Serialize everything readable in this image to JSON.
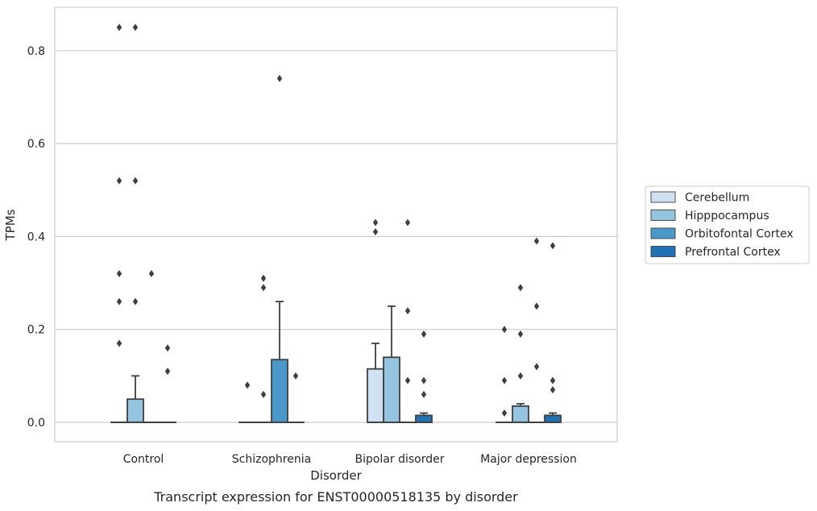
{
  "caption": "Transcript expression for ENST00000518135 by disorder",
  "chart_data": {
    "type": "box",
    "title": "",
    "xlabel": "Disorder",
    "ylabel": "TPMs",
    "ylim": [
      -0.04,
      0.9
    ],
    "yticks": [
      0.0,
      0.2,
      0.4,
      0.6,
      0.8
    ],
    "ytick_labels": [
      "0.0",
      "0.2",
      "0.4",
      "0.6",
      "0.8"
    ],
    "grid": "horizontal",
    "legend_position": "right",
    "categories": [
      "Control",
      "Schizophrenia",
      "Bipolar disorder",
      "Major depression"
    ],
    "series": [
      {
        "name": "Cerebellum",
        "color": "#d0e1f2",
        "boxes": [
          {
            "q1": 0,
            "median": 0,
            "q3": 0,
            "whisker_low": 0,
            "whisker_high": 0,
            "outliers": [
              0.17,
              0.26,
              0.32,
              0.52,
              0.85
            ]
          },
          {
            "q1": 0,
            "median": 0,
            "q3": 0,
            "whisker_low": 0,
            "whisker_high": 0,
            "outliers": [
              0.08
            ]
          },
          {
            "q1": 0,
            "median": 0,
            "q3": 0.115,
            "whisker_low": 0,
            "whisker_high": 0.17,
            "outliers": [
              0.41,
              0.43
            ]
          },
          {
            "q1": 0,
            "median": 0,
            "q3": 0,
            "whisker_low": 0,
            "whisker_high": 0,
            "outliers": [
              0.02,
              0.09,
              0.2
            ]
          }
        ]
      },
      {
        "name": "Hipppocampus",
        "color": "#94c4df",
        "boxes": [
          {
            "q1": 0,
            "median": 0,
            "q3": 0.05,
            "whisker_low": 0,
            "whisker_high": 0.1,
            "outliers": [
              0.26,
              0.52,
              0.85
            ]
          },
          {
            "q1": 0,
            "median": 0,
            "q3": 0,
            "whisker_low": 0,
            "whisker_high": 0,
            "outliers": [
              0.06,
              0.29,
              0.31
            ]
          },
          {
            "q1": 0,
            "median": 0,
            "q3": 0.14,
            "whisker_low": 0,
            "whisker_high": 0.25,
            "outliers": []
          },
          {
            "q1": 0,
            "median": 0,
            "q3": 0.035,
            "whisker_low": 0,
            "whisker_high": 0.04,
            "outliers": [
              0.1,
              0.19,
              0.29
            ]
          }
        ]
      },
      {
        "name": "Orbitofontal Cortex",
        "color": "#4a98c9",
        "boxes": [
          {
            "q1": 0,
            "median": 0,
            "q3": 0,
            "whisker_low": 0,
            "whisker_high": 0,
            "outliers": [
              0.32
            ]
          },
          {
            "q1": 0,
            "median": 0,
            "q3": 0.135,
            "whisker_low": 0,
            "whisker_high": 0.26,
            "outliers": [
              0.74
            ]
          },
          {
            "q1": 0,
            "median": 0,
            "q3": 0,
            "whisker_low": 0,
            "whisker_high": 0,
            "outliers": [
              0.09,
              0.24,
              0.43
            ]
          },
          {
            "q1": 0,
            "median": 0,
            "q3": 0,
            "whisker_low": 0,
            "whisker_high": 0,
            "outliers": [
              0.12,
              0.25,
              0.39
            ]
          }
        ]
      },
      {
        "name": "Prefrontal Cortex",
        "color": "#2171b5",
        "boxes": [
          {
            "q1": 0,
            "median": 0,
            "q3": 0,
            "whisker_low": 0,
            "whisker_high": 0,
            "outliers": [
              0.11,
              0.16
            ]
          },
          {
            "q1": 0,
            "median": 0,
            "q3": 0,
            "whisker_low": 0,
            "whisker_high": 0,
            "outliers": [
              0.1
            ]
          },
          {
            "q1": 0,
            "median": 0,
            "q3": 0.015,
            "whisker_low": 0,
            "whisker_high": 0.02,
            "outliers": [
              0.06,
              0.09,
              0.19
            ]
          },
          {
            "q1": 0,
            "median": 0,
            "q3": 0.015,
            "whisker_low": 0,
            "whisker_high": 0.02,
            "outliers": [
              0.07,
              0.09,
              0.38
            ]
          }
        ]
      }
    ]
  }
}
